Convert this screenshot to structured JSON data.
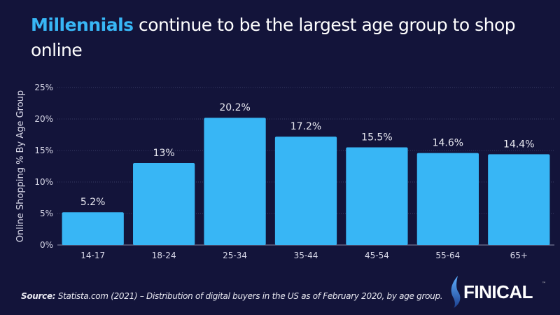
{
  "title": {
    "highlight": "Millennials",
    "rest": " continue to be the largest age group to shop online"
  },
  "chart_data": {
    "type": "bar",
    "categories": [
      "14-17",
      "18-24",
      "25-34",
      "35-44",
      "45-54",
      "55-64",
      "65+"
    ],
    "values": [
      5.2,
      13,
      20.2,
      17.2,
      15.5,
      14.6,
      14.4
    ],
    "data_labels": [
      "5.2%",
      "13%",
      "20.2%",
      "17.2%",
      "15.5%",
      "14.6%",
      "14.4%"
    ],
    "ylabel": "Online Shopping % By Age Group",
    "xlabel": "",
    "ylim": [
      0,
      25
    ],
    "yticks": [
      0,
      5,
      10,
      15,
      20,
      25
    ],
    "ytick_labels": [
      "0%",
      "5%",
      "10%",
      "15%",
      "20%",
      "25%"
    ],
    "grid": true,
    "bar_color": "#38b6f5"
  },
  "source": {
    "label": "Source:",
    "text": " Statista.com (2021) – Distribution of digital buyers in the US as of February 2020, by age group."
  },
  "logo": {
    "text": "FINICAL",
    "tm": "™"
  },
  "colors": {
    "background": "#13143a",
    "accent": "#38b6f5"
  }
}
